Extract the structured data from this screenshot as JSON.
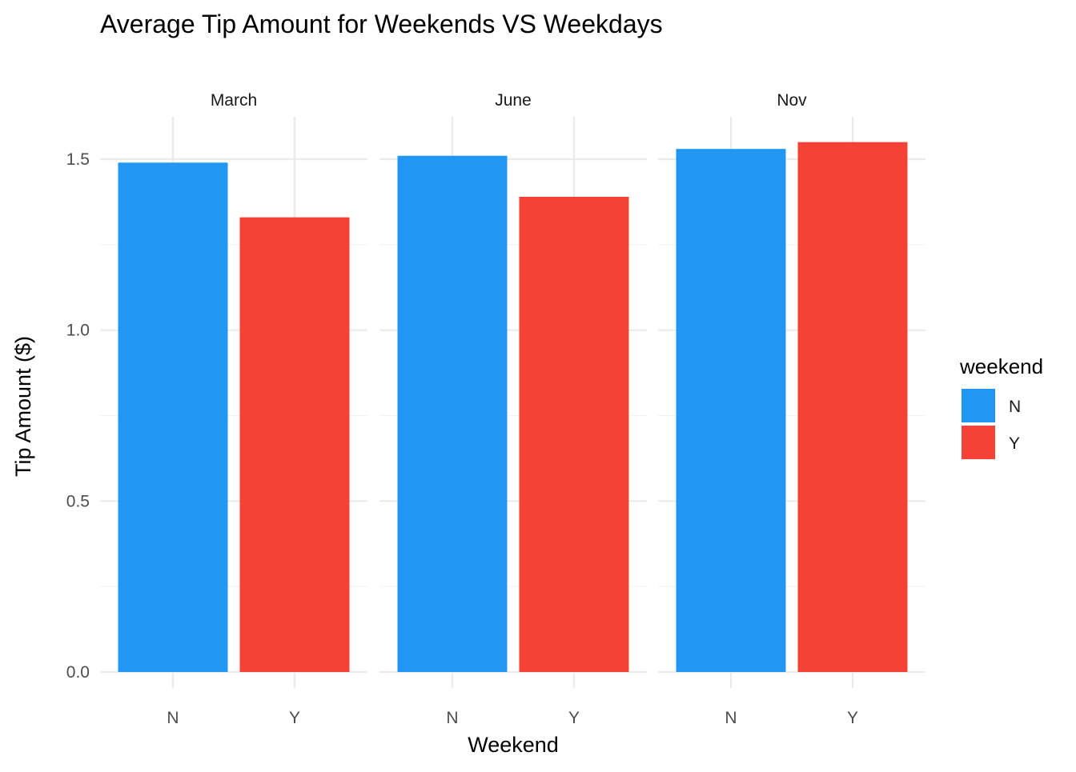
{
  "chart_data": {
    "type": "bar",
    "title": "Average Tip Amount for Weekends VS Weekdays",
    "xlabel": "Weekend",
    "ylabel": "Tip Amount ($)",
    "ylim": [
      0,
      1.6
    ],
    "y_ticks": [
      "0.0",
      "0.5",
      "1.0",
      "1.5"
    ],
    "y_tick_values": [
      0,
      0.5,
      1.0,
      1.5
    ],
    "grid": true,
    "facets": [
      {
        "name": "March",
        "categories": [
          "N",
          "Y"
        ],
        "values": [
          1.49,
          1.33
        ]
      },
      {
        "name": "June",
        "categories": [
          "N",
          "Y"
        ],
        "values": [
          1.51,
          1.39
        ]
      },
      {
        "name": "Nov",
        "categories": [
          "N",
          "Y"
        ],
        "values": [
          1.53,
          1.55
        ]
      }
    ],
    "legend": {
      "title": "weekend",
      "position": "right",
      "items": [
        {
          "label": "N",
          "color": "#2196F3"
        },
        {
          "label": "Y",
          "color": "#F44336"
        }
      ]
    },
    "colors": {
      "N": "#2196F3",
      "Y": "#F44336"
    }
  }
}
